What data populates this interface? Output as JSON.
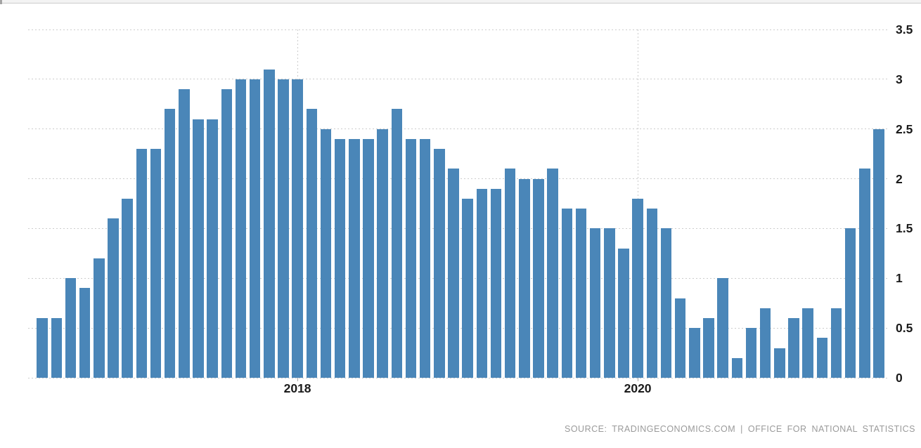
{
  "widget": {
    "source_label": "SOURCE: TRADINGECONOMICS.COM | OFFICE FOR NATIONAL STATISTICS"
  },
  "colors": {
    "bar": "#4a86b8",
    "gridline": "#cccccc",
    "tick_label": "#1b1b1b",
    "source_text": "#9a9a9a"
  },
  "chart_data": {
    "type": "bar",
    "title": "",
    "ylabel": "",
    "xlabel": "",
    "ylim": [
      0,
      3.5
    ],
    "grid": true,
    "y_axis_side": "right",
    "legend": null,
    "bar_color": "#4a86b8",
    "ytick_values": [
      0,
      0.5,
      1,
      1.5,
      2,
      2.5,
      3,
      3.5
    ],
    "ytick_labels": [
      "0",
      "0.5",
      "1",
      "1.5",
      "2",
      "2.5",
      "3",
      "3.5"
    ],
    "xticks": [
      {
        "label": "2018",
        "month_index": 18
      },
      {
        "label": "2020",
        "month_index": 42
      }
    ],
    "x": [
      "2016-07",
      "2016-08",
      "2016-09",
      "2016-10",
      "2016-11",
      "2016-12",
      "2017-01",
      "2017-02",
      "2017-03",
      "2017-04",
      "2017-05",
      "2017-06",
      "2017-07",
      "2017-08",
      "2017-09",
      "2017-10",
      "2017-11",
      "2017-12",
      "2018-01",
      "2018-02",
      "2018-03",
      "2018-04",
      "2018-05",
      "2018-06",
      "2018-07",
      "2018-08",
      "2018-09",
      "2018-10",
      "2018-11",
      "2018-12",
      "2019-01",
      "2019-02",
      "2019-03",
      "2019-04",
      "2019-05",
      "2019-06",
      "2019-07",
      "2019-08",
      "2019-09",
      "2019-10",
      "2019-11",
      "2019-12",
      "2020-01",
      "2020-02",
      "2020-03",
      "2020-04",
      "2020-05",
      "2020-06",
      "2020-07",
      "2020-08",
      "2020-09",
      "2020-10",
      "2020-11",
      "2020-12",
      "2021-01",
      "2021-02",
      "2021-03",
      "2021-04",
      "2021-05",
      "2021-06"
    ],
    "values": [
      0.6,
      0.6,
      1.0,
      0.9,
      1.2,
      1.6,
      1.8,
      2.3,
      2.3,
      2.7,
      2.9,
      2.6,
      2.6,
      2.9,
      3.0,
      3.0,
      3.1,
      3.0,
      3.0,
      2.7,
      2.5,
      2.4,
      2.4,
      2.4,
      2.5,
      2.7,
      2.4,
      2.4,
      2.3,
      2.1,
      1.8,
      1.9,
      1.9,
      2.1,
      2.0,
      2.0,
      2.1,
      1.7,
      1.7,
      1.5,
      1.5,
      1.3,
      1.8,
      1.7,
      1.5,
      0.8,
      0.5,
      0.6,
      1.0,
      0.2,
      0.5,
      0.7,
      0.3,
      0.6,
      0.7,
      0.4,
      0.7,
      1.5,
      2.1,
      2.5
    ]
  }
}
